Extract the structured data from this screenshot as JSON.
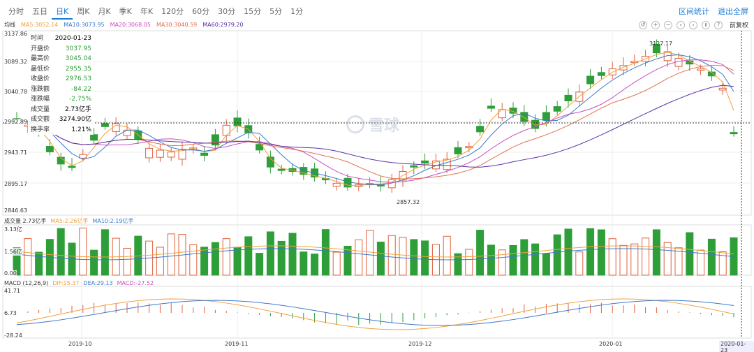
{
  "tabs": [
    "分时",
    "五日",
    "日K",
    "周K",
    "月K",
    "季K",
    "年K",
    "120分",
    "60分",
    "30分",
    "15分",
    "5分",
    "1分"
  ],
  "active_tab": "日K",
  "top_links": {
    "range_stats": "区间统计",
    "exit_fullscreen": "退出全屏"
  },
  "ma": {
    "title": "均线",
    "ma5": "MA5:3052.14",
    "ma10": "MA10:3073.95",
    "ma20": "MA20:3068.05",
    "ma30": "MA30:3040.59",
    "ma60": "MA60:2979.20"
  },
  "colors": {
    "up": "#e0613d",
    "down": "#2e9e39",
    "ma5": "#f0a13d",
    "ma10": "#3d78c9",
    "ma20": "#c74fbf",
    "ma30": "#e2704e",
    "ma60": "#5a33a6",
    "grid": "#eeeeee"
  },
  "controls": {
    "icons": [
      "back-icon",
      "zoom-in-icon",
      "zoom-out-icon",
      "prev-icon",
      "next-icon",
      "pause-icon",
      "help-icon"
    ],
    "adjust": "前复权"
  },
  "price_axis": [
    "3137.86",
    "3089.32",
    "3040.78",
    "2992.89",
    "2943.71",
    "2895.17",
    "2846.63"
  ],
  "price_range": [
    2846.63,
    3137.86
  ],
  "current_price_label": "2992.89",
  "tooltip": [
    [
      "时间",
      "2020-01-23"
    ],
    [
      "开盘价",
      "3037.95"
    ],
    [
      "最高价",
      "3045.04"
    ],
    [
      "最低价",
      "2955.35"
    ],
    [
      "收盘价",
      "2976.53"
    ],
    [
      "涨跌额",
      "-84.22"
    ],
    [
      "涨跌幅",
      "-2.75%"
    ],
    [
      "成交量",
      "2.73亿手"
    ],
    [
      "成交额",
      "3274.90亿"
    ],
    [
      "换手率",
      "1.21%"
    ]
  ],
  "annotations": {
    "high": "3127.17",
    "low": "2857.32"
  },
  "watermark": "雪球",
  "volume": {
    "title": "成交量 2.73亿手",
    "ma5": "MA5:2.26亿手",
    "ma10": "MA10:2.19亿手",
    "axis": [
      "3.13亿",
      "1.56亿",
      "0.00"
    ]
  },
  "macd": {
    "title": "MACD (12,26,9)",
    "dif": "DIF:15.37",
    "dea": "DEA:29.13",
    "macd": "MACD:-27.52",
    "axis": [
      "41.71",
      "6.73",
      "-28.24"
    ]
  },
  "x_labels": [
    "2019-10",
    "2019-11",
    "2019-12",
    "2020-01",
    "2020-01-23"
  ]
}
